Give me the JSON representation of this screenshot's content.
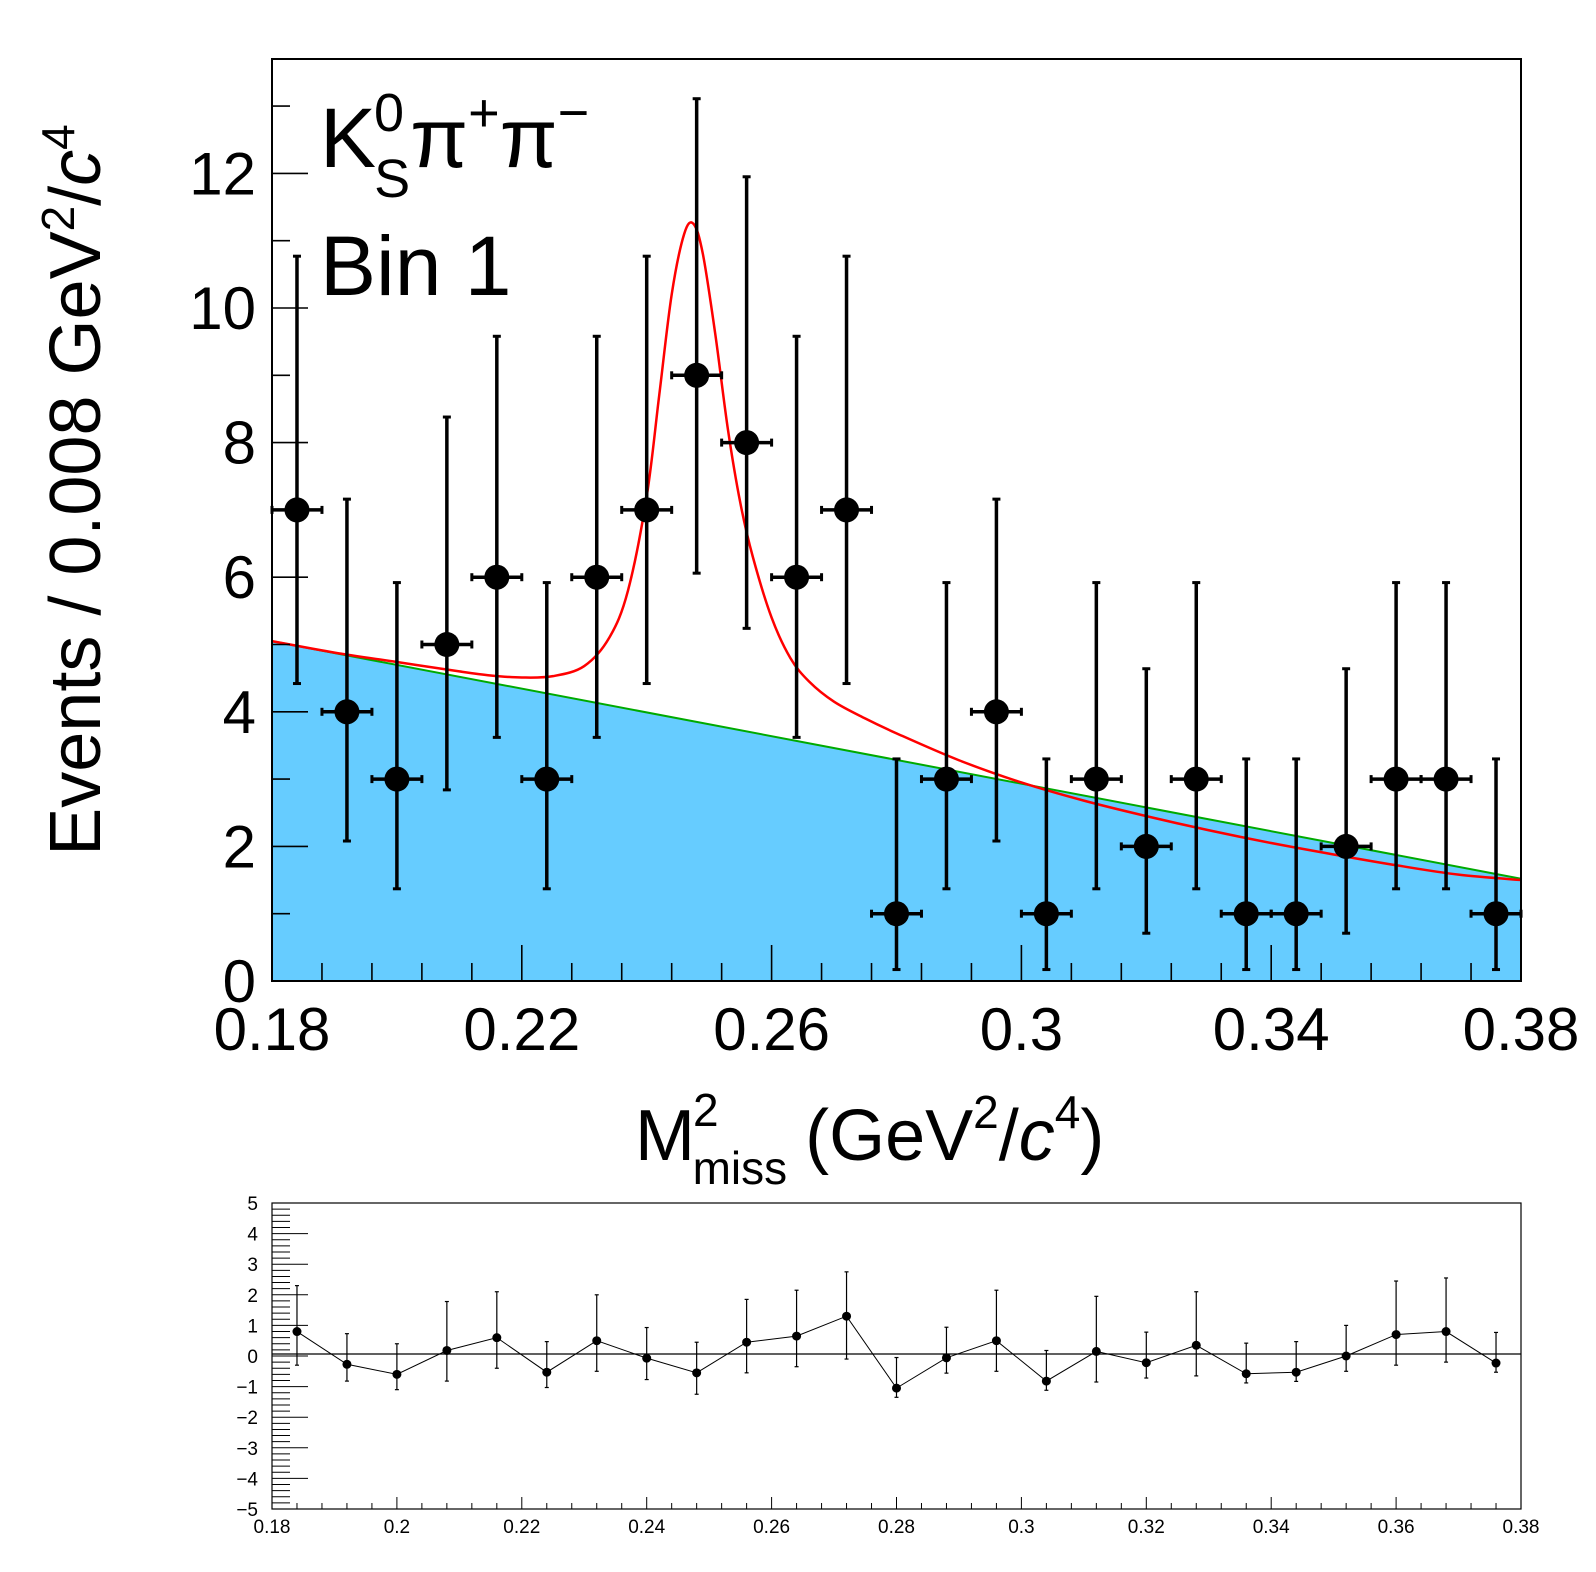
{
  "chart_data": [
    {
      "type": "scatter",
      "panel": "main",
      "ylabel": "Events / 0.008 GeV²/c⁴",
      "xlabel": "M²miss (GeV²/c⁴)",
      "annotations": [
        "K⁰Sπ⁺π⁻",
        "Bin 1"
      ],
      "xlim": [
        0.18,
        0.38
      ],
      "ylim": [
        0,
        13.7
      ],
      "x_ticks": [
        "0.18",
        "0.22",
        "0.26",
        "0.3",
        "0.34",
        "0.38"
      ],
      "y_ticks": [
        "0",
        "2",
        "4",
        "6",
        "8",
        "10",
        "12"
      ],
      "bin_width": 0.008,
      "colors": {
        "points": "#000000",
        "fit": "#ff0000",
        "background_line": "#00aa00",
        "background_fill": "#66ccff"
      },
      "series": [
        {
          "kind": "data_points",
          "x": [
            0.184,
            0.192,
            0.2,
            0.208,
            0.216,
            0.224,
            0.232,
            0.24,
            0.248,
            0.256,
            0.264,
            0.272,
            0.28,
            0.288,
            0.296,
            0.304,
            0.312,
            0.32,
            0.328,
            0.336,
            0.344,
            0.352,
            0.36,
            0.368,
            0.376
          ],
          "y": [
            7,
            4,
            3,
            5,
            6,
            3,
            6,
            7,
            9,
            8,
            6,
            7,
            1,
            3,
            4,
            1,
            3,
            2,
            3,
            1,
            1,
            2,
            3,
            3,
            1
          ],
          "err_low": [
            2.58,
            1.92,
            1.63,
            2.16,
            2.38,
            1.63,
            2.38,
            2.58,
            2.94,
            2.76,
            2.38,
            2.58,
            0.83,
            1.63,
            1.92,
            0.83,
            1.63,
            1.29,
            1.63,
            0.83,
            0.83,
            1.29,
            1.63,
            1.63,
            0.83
          ],
          "err_high": [
            3.77,
            3.16,
            2.92,
            3.38,
            3.58,
            2.92,
            3.58,
            3.77,
            4.11,
            3.95,
            3.58,
            3.77,
            2.3,
            2.92,
            3.16,
            2.3,
            2.92,
            2.64,
            2.92,
            2.3,
            2.3,
            2.64,
            2.92,
            2.92,
            2.3
          ]
        },
        {
          "kind": "fit_total",
          "x": [
            0.18,
            0.19,
            0.2,
            0.21,
            0.215,
            0.22,
            0.225,
            0.23,
            0.234,
            0.237,
            0.24,
            0.242,
            0.244,
            0.246,
            0.2475,
            0.249,
            0.251,
            0.253,
            0.255,
            0.257,
            0.26,
            0.263,
            0.266,
            0.27,
            0.275,
            0.28,
            0.29,
            0.3,
            0.31,
            0.32,
            0.33,
            0.34,
            0.35,
            0.36,
            0.37,
            0.38
          ],
          "y": [
            5.05,
            4.88,
            4.74,
            4.6,
            4.54,
            4.51,
            4.53,
            4.68,
            5.1,
            5.8,
            7.2,
            8.7,
            10.2,
            11.1,
            11.25,
            10.8,
            9.6,
            8.2,
            7.1,
            6.3,
            5.4,
            4.8,
            4.45,
            4.15,
            3.9,
            3.68,
            3.28,
            2.95,
            2.68,
            2.45,
            2.24,
            2.05,
            1.88,
            1.72,
            1.58,
            1.5
          ]
        },
        {
          "kind": "background",
          "x": [
            0.18,
            0.38
          ],
          "y": [
            5.05,
            1.52
          ]
        }
      ]
    },
    {
      "type": "line",
      "panel": "pull",
      "xlim": [
        0.18,
        0.38
      ],
      "ylim": [
        -5,
        5
      ],
      "x_ticks": [
        "0.18",
        "0.2",
        "0.22",
        "0.24",
        "0.26",
        "0.28",
        "0.3",
        "0.32",
        "0.34",
        "0.36",
        "0.38"
      ],
      "y_ticks": [
        "5",
        "4",
        "3",
        "2",
        "1",
        "0",
        "−1",
        "−2",
        "−3",
        "−4",
        "−5"
      ],
      "series": [
        {
          "kind": "pull_points",
          "x": [
            0.184,
            0.192,
            0.2,
            0.208,
            0.216,
            0.224,
            0.232,
            0.24,
            0.248,
            0.256,
            0.264,
            0.272,
            0.28,
            0.288,
            0.296,
            0.304,
            0.312,
            0.32,
            0.328,
            0.336,
            0.344,
            0.352,
            0.36,
            0.368,
            0.376
          ],
          "y": [
            0.8,
            -0.27,
            -0.6,
            0.18,
            0.6,
            -0.53,
            0.5,
            -0.07,
            -0.55,
            0.45,
            0.65,
            1.3,
            -1.05,
            -0.06,
            0.5,
            -0.82,
            0.15,
            -0.22,
            0.35,
            -0.58,
            -0.53,
            0.0,
            0.7,
            0.8,
            -0.23
          ],
          "err_low": [
            1.1,
            0.55,
            0.5,
            1.0,
            1.0,
            0.5,
            1.0,
            0.7,
            0.7,
            1.0,
            1.0,
            1.4,
            0.3,
            0.5,
            1.0,
            0.3,
            1.0,
            0.5,
            1.0,
            0.3,
            0.3,
            0.5,
            1.0,
            1.0,
            0.3
          ],
          "err_high": [
            1.5,
            1.0,
            1.0,
            1.6,
            1.5,
            1.0,
            1.5,
            1.0,
            1.0,
            1.4,
            1.5,
            1.45,
            1.0,
            1.0,
            1.65,
            1.0,
            1.8,
            1.0,
            1.75,
            1.0,
            1.0,
            1.0,
            1.75,
            1.75,
            1.0
          ]
        }
      ]
    }
  ]
}
